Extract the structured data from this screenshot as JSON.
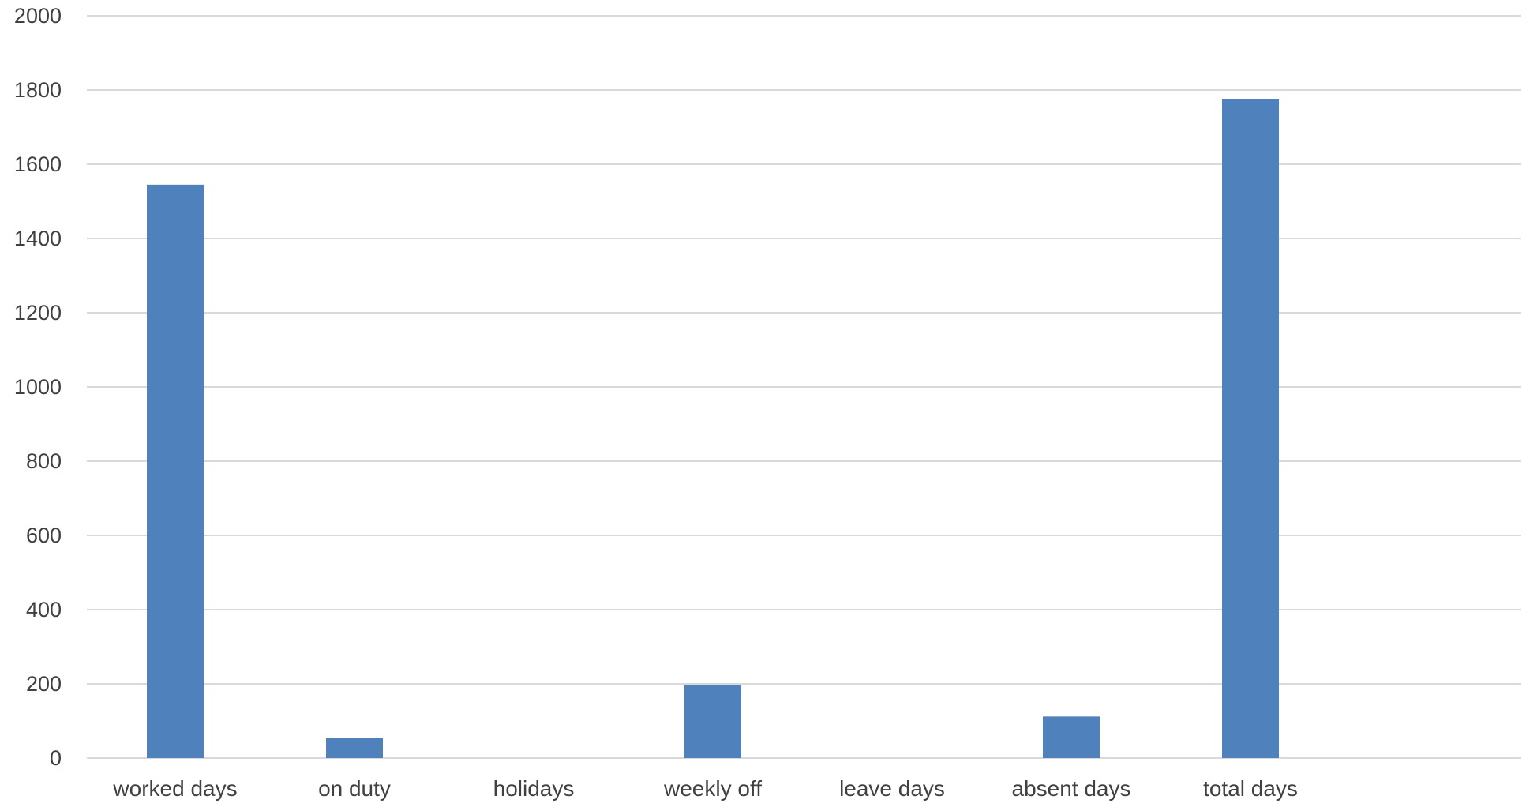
{
  "chart_data": {
    "type": "bar",
    "title": "",
    "xlabel": "",
    "ylabel": "",
    "categories": [
      "worked days",
      "on duty",
      "holidays",
      "weekly off",
      "leave days",
      "absent days",
      "total days"
    ],
    "series": [
      {
        "values": [
          1545,
          55,
          0,
          197,
          0,
          112,
          1776
        ]
      }
    ],
    "ylim": [
      0,
      2000
    ],
    "yticks": [
      "0",
      "200",
      "400",
      "600",
      "800",
      "1000",
      "1200",
      "1400",
      "1600",
      "1800",
      "2000"
    ],
    "grid": true,
    "legend": "none",
    "colors": {
      "bar": "#4F81BD",
      "grid": "#D9D9D9",
      "axis": "#D9D9D9",
      "text": "#404040"
    }
  }
}
